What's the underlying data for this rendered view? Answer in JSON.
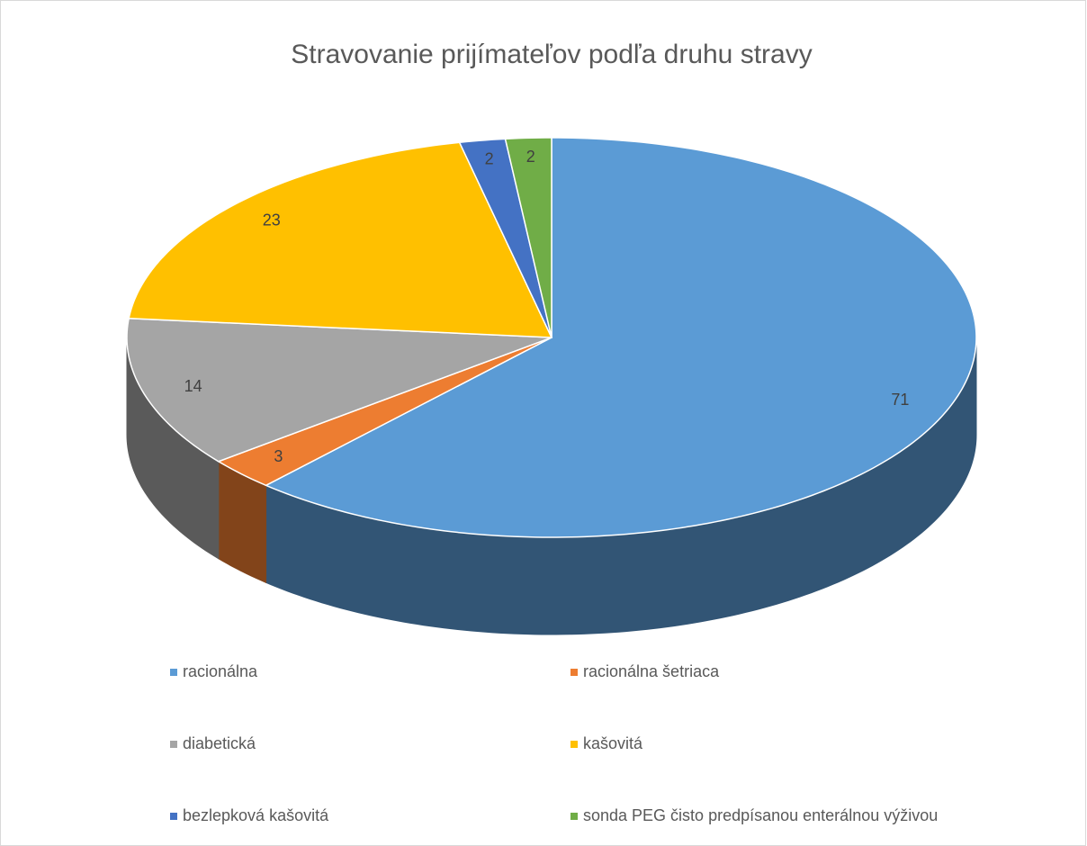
{
  "chart_data": {
    "type": "pie",
    "title": "Stravovanie prijímateľov podľa druhu stravy",
    "categories": [
      "racionálna",
      "racionálna šetriaca",
      "diabetická",
      "kašovitá",
      "bezlepková kašovitá",
      "sonda PEG čisto predpísanou enterálnou výživou"
    ],
    "values": [
      71,
      3,
      14,
      23,
      2,
      2
    ],
    "colors": [
      "#5b9bd5",
      "#ed7d31",
      "#a5a5a5",
      "#ffc000",
      "#4472c4",
      "#70ad47"
    ],
    "legend": "bottom"
  }
}
